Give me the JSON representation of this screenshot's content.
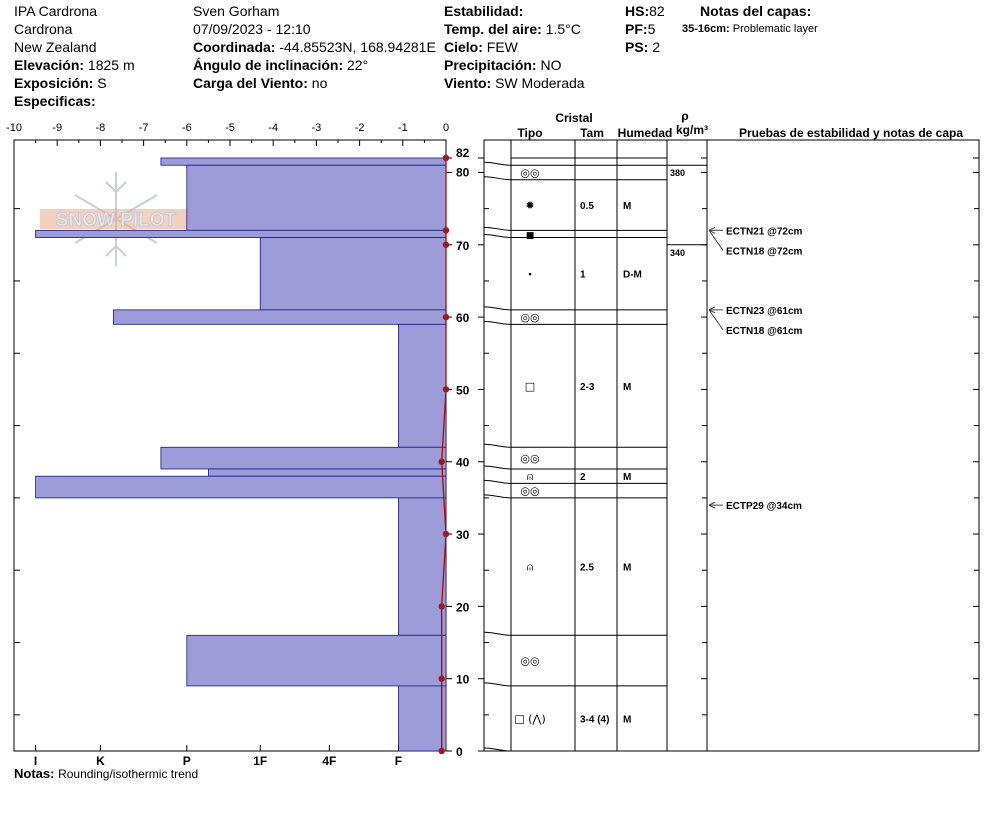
{
  "header": {
    "location": "IPA Cardrona",
    "area": "Cardrona",
    "country": "New Zealand",
    "elevation_label": "Elevación:",
    "elevation_value": "1825 m",
    "aspect_label": "Exposición:",
    "aspect_value": "S",
    "specifics_label": "Especificas:",
    "observer": "Sven Gorham",
    "datetime": "07/09/2023 - 12:10",
    "coords_label": "Coordinada:",
    "coords_value": "-44.85523N, 168.94281E",
    "incline_label": "Ángulo de inclinación:",
    "incline_value": "22°",
    "windload_label": "Carga del Viento:",
    "windload_value": "no",
    "stability_label": "Estabilidad:",
    "stability_value": "",
    "airtemp_label": "Temp. del aire:",
    "airtemp_value": "1.5°C",
    "sky_label": "Cielo:",
    "sky_value": "FEW",
    "precip_label": "Precipitación:",
    "precip_value": "NO",
    "wind_label": "Viento:",
    "wind_value": "SW Moderada",
    "hs_label": "HS:",
    "hs_value": "82",
    "pf_label": "PF:",
    "pf_value": "5",
    "ps_label": "PS:",
    "ps_value": "2",
    "layer_notes_title": "Notas del capas:",
    "layer_note_range": "35-16cm:",
    "layer_note_text": "Problematic layer"
  },
  "table_headers": {
    "crystal": "Cristal",
    "type": "Tipo",
    "size": "Tam",
    "moisture": "Humedad",
    "rho": "ρ",
    "density_unit": "kg/m³",
    "tests": "Pruebas de estabilidad y notas de capa"
  },
  "notes_label": "Notas:",
  "notes_text": "Rounding/isothermic trend",
  "watermark": "SNOW PILOT",
  "colors": {
    "bar_fill": "#9c9cd8",
    "bar_stroke": "#1a1a80",
    "temp_line": "#c00000",
    "temp_point": "#a01818",
    "watermark": "#c0ccd8"
  },
  "chart_data": {
    "type": "bar",
    "orientation": "horizontal",
    "title": "",
    "y_axis": {
      "label": "",
      "range": [
        0,
        82
      ],
      "ticks": [
        0,
        10,
        20,
        30,
        40,
        50,
        60,
        70,
        80,
        82
      ]
    },
    "temp_axis": {
      "range": [
        -10,
        0
      ],
      "ticks": [
        "-10",
        "-9",
        "-8",
        "-7",
        "-6",
        "-5",
        "-4",
        "-3",
        "-2",
        "-1",
        "0"
      ]
    },
    "hardness_scale": [
      "I",
      "K",
      "P",
      "1F",
      "4F",
      "F"
    ],
    "hardness_layers": [
      {
        "bottom": 81,
        "top": 82,
        "hardness": 6.6
      },
      {
        "bottom": 72,
        "top": 81,
        "hardness": 6.0
      },
      {
        "bottom": 71,
        "top": 72,
        "hardness": 9.5
      },
      {
        "bottom": 61,
        "top": 71,
        "hardness": 4.3
      },
      {
        "bottom": 59,
        "top": 61,
        "hardness": 7.7
      },
      {
        "bottom": 42,
        "top": 59,
        "hardness": 1.1
      },
      {
        "bottom": 39,
        "top": 42,
        "hardness": 6.6
      },
      {
        "bottom": 38,
        "top": 39,
        "hardness": 5.5
      },
      {
        "bottom": 35,
        "top": 38,
        "hardness": 9.5
      },
      {
        "bottom": 16,
        "top": 35,
        "hardness": 1.1
      },
      {
        "bottom": 9,
        "top": 16,
        "hardness": 6.0
      },
      {
        "bottom": 0,
        "top": 9,
        "hardness": 1.1
      }
    ],
    "temperature_profile": [
      {
        "height": 82,
        "temp": 0.0
      },
      {
        "height": 72,
        "temp": 0.0
      },
      {
        "height": 70,
        "temp": 0.0
      },
      {
        "height": 60,
        "temp": 0.0
      },
      {
        "height": 50,
        "temp": 0.0
      },
      {
        "height": 40,
        "temp": -0.1
      },
      {
        "height": 30,
        "temp": 0.0
      },
      {
        "height": 20,
        "temp": -0.1
      },
      {
        "height": 10,
        "temp": -0.1
      },
      {
        "height": 0,
        "temp": -0.1
      }
    ],
    "crystal_layers": [
      {
        "bottom": 81,
        "top": 82,
        "type": "",
        "size": "",
        "moisture": ""
      },
      {
        "bottom": 79,
        "top": 81,
        "type": "◎◎",
        "size": "",
        "moisture": ""
      },
      {
        "bottom": 72,
        "top": 79,
        "type": "✹",
        "size": "0.5",
        "moisture": "M"
      },
      {
        "bottom": 71,
        "top": 72,
        "type": "■",
        "size": "",
        "moisture": ""
      },
      {
        "bottom": 61,
        "top": 71,
        "type": "•",
        "size": "1",
        "moisture": "D-M"
      },
      {
        "bottom": 59,
        "top": 61,
        "type": "◎◎",
        "size": "",
        "moisture": ""
      },
      {
        "bottom": 42,
        "top": 59,
        "type": "□",
        "size": "2-3",
        "moisture": "M"
      },
      {
        "bottom": 39,
        "top": 42,
        "type": "◎◎",
        "size": "",
        "moisture": ""
      },
      {
        "bottom": 37,
        "top": 39,
        "type": "⍝",
        "size": "2",
        "moisture": "M"
      },
      {
        "bottom": 35,
        "top": 37,
        "type": "◎◎",
        "size": "",
        "moisture": ""
      },
      {
        "bottom": 16,
        "top": 35,
        "type": "⍝",
        "size": "2.5",
        "moisture": "M"
      },
      {
        "bottom": 9,
        "top": 16,
        "type": "◎◎",
        "size": "",
        "moisture": ""
      },
      {
        "bottom": 0,
        "top": 9,
        "type": "□ (⋀)",
        "size": "3-4 (4)",
        "moisture": "M"
      }
    ],
    "density": [
      {
        "bottom": 72,
        "top": 81,
        "value": "380"
      },
      {
        "bottom": 59,
        "top": 70,
        "value": "340"
      }
    ],
    "stability_tests": [
      {
        "label": "ECTN21 @72cm",
        "height": 72
      },
      {
        "label": "ECTN18 @72cm",
        "height": 72
      },
      {
        "label": "ECTN23 @61cm",
        "height": 61
      },
      {
        "label": "ECTN18 @61cm",
        "height": 61
      },
      {
        "label": "ECTP29 @34cm",
        "height": 34
      }
    ]
  }
}
